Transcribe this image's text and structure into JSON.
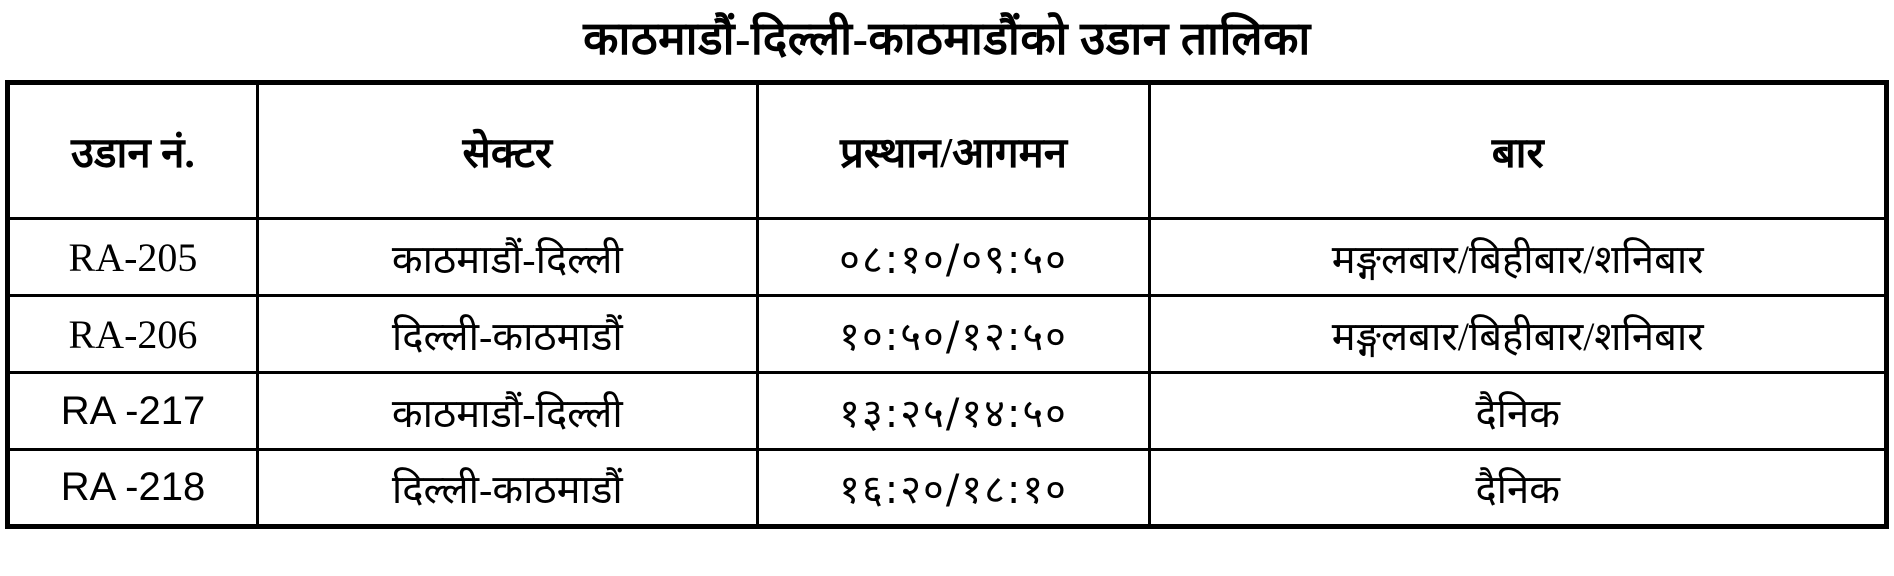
{
  "title": "काठमाडौं-दिल्ली-काठमाडौंको उडान तालिका",
  "colors": {
    "background": "#ffffff",
    "text": "#000000",
    "border": "#000000"
  },
  "table": {
    "headers": {
      "flight_no": "उडान नं.",
      "sector": "सेक्टर",
      "departure_arrival": "प्रस्थान/आगमन",
      "days": "बार"
    },
    "rows": [
      {
        "flight_no": "RA-205",
        "sector": "काठमाडौं-दिल्ली",
        "departure_arrival": "०८:१०/०९:५०",
        "days": "मङ्गलबार/बिहीबार/शनिबार"
      },
      {
        "flight_no": "RA-206",
        "sector": "दिल्ली-काठमाडौं",
        "departure_arrival": "१०:५०/१२:५०",
        "days": "मङ्गलबार/बिहीबार/शनिबार"
      },
      {
        "flight_no": "RA -217",
        "sector": "काठमाडौं-दिल्ली",
        "departure_arrival": "१३:२५/१४:५०",
        "days": "दैनिक"
      },
      {
        "flight_no": "RA -218",
        "sector": "दिल्ली-काठमाडौं",
        "departure_arrival": "१६:२०/१८:१०",
        "days": "दैनिक"
      }
    ]
  }
}
